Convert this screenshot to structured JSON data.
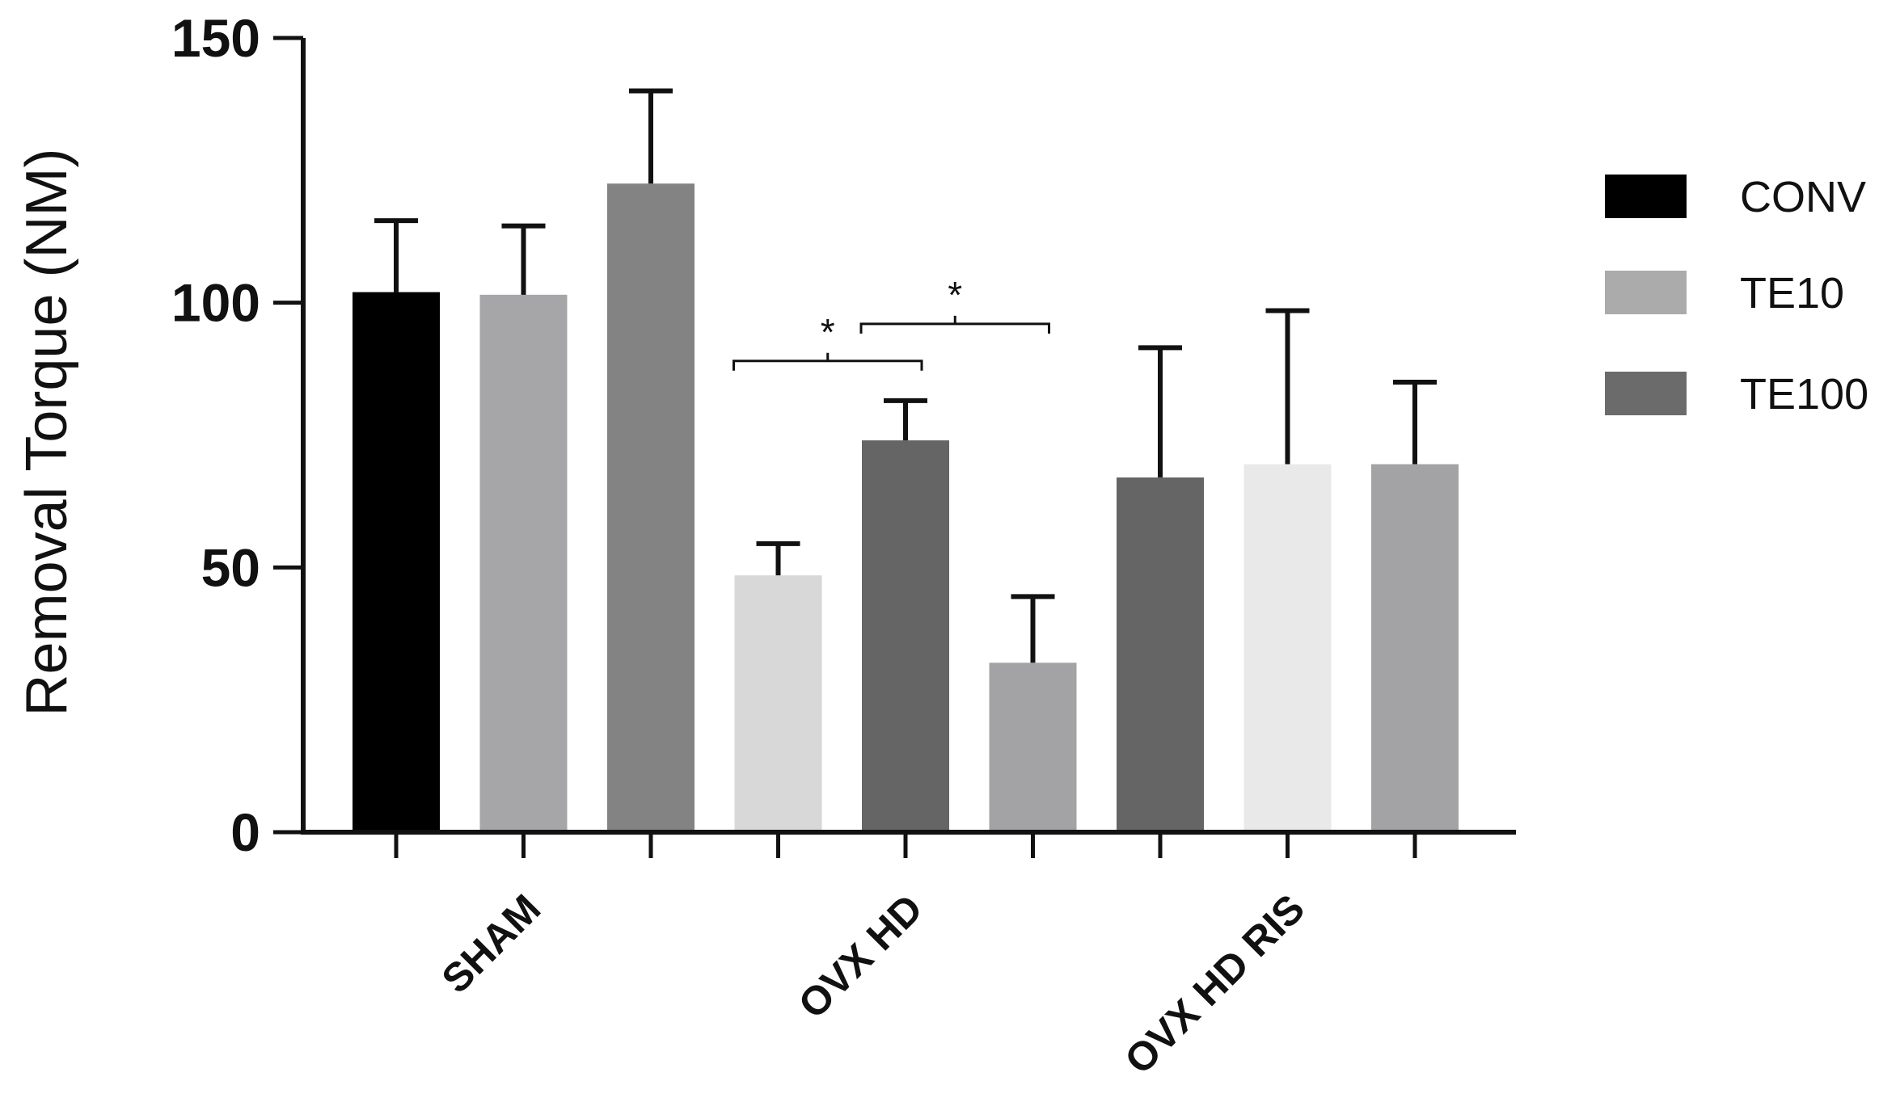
{
  "chart_data": {
    "type": "bar",
    "ylabel": "Removal Torque (NM)",
    "xlabel": "",
    "ylim": [
      0,
      150
    ],
    "yticks": [
      0,
      50,
      100,
      150
    ],
    "categories": [
      "SHAM",
      "OVX HD",
      "OVX HD RIS"
    ],
    "legend": {
      "position": "right",
      "entries": [
        {
          "label": "CONV",
          "color": "#000000"
        },
        {
          "label": "TE10",
          "color": "#ababab"
        },
        {
          "label": "TE100",
          "color": "#6b6b6b"
        }
      ]
    },
    "bars": [
      {
        "category": "SHAM",
        "value": 102,
        "error": 13.5,
        "color": "#000000"
      },
      {
        "category": "SHAM",
        "value": 101.5,
        "error": 13,
        "color": "#a6a6a8"
      },
      {
        "category": "SHAM",
        "value": 122.5,
        "error": 17.5,
        "color": "#838383"
      },
      {
        "category": "OVX HD",
        "value": 48.5,
        "error": 6,
        "color": "#d8d8d8"
      },
      {
        "category": "OVX HD",
        "value": 74,
        "error": 7.5,
        "color": "#656565"
      },
      {
        "category": "OVX HD",
        "value": 32,
        "error": 12.5,
        "color": "#a3a3a5"
      },
      {
        "category": "OVX HD RIS",
        "value": 67,
        "error": 24.5,
        "color": "#656565"
      },
      {
        "category": "OVX HD RIS",
        "value": 69.5,
        "error": 29,
        "color": "#e9e9e9"
      },
      {
        "category": "OVX HD RIS",
        "value": 69.5,
        "error": 15.5,
        "color": "#a3a3a5"
      }
    ],
    "significance": [
      {
        "from_bar": 3,
        "to_bar": 4,
        "label": "*",
        "y": 89
      },
      {
        "from_bar": 4,
        "to_bar": 5,
        "label": "*",
        "y": 96
      }
    ]
  }
}
